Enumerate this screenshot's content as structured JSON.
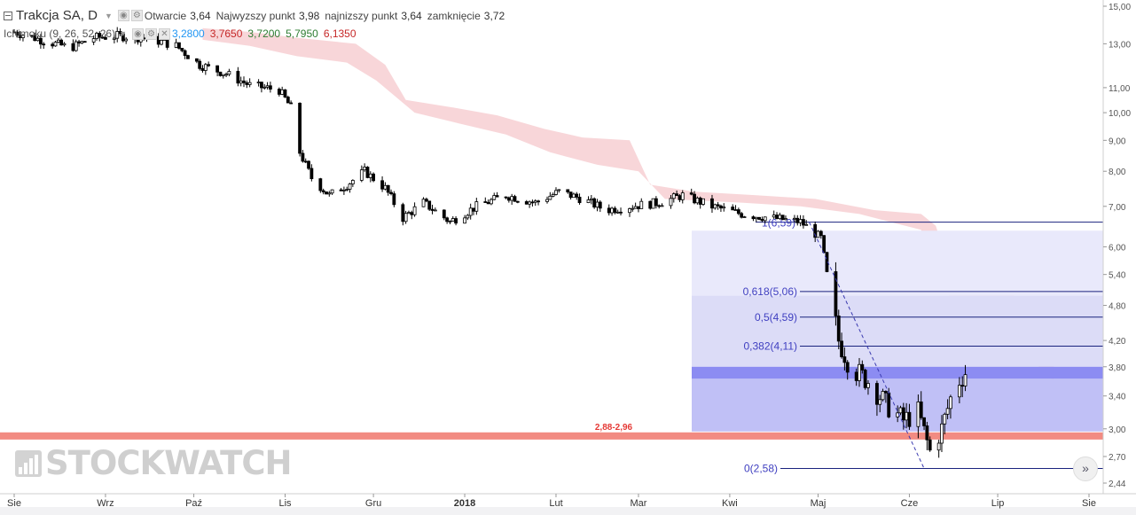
{
  "legend": {
    "title": "Trakcja SA, D",
    "open_label": "Otwarcie",
    "open_value": "3,64",
    "high_label": "Najwyzszy punkt",
    "high_value": "3,98",
    "low_label": "najnizszy punkt",
    "low_value": "3,64",
    "close_label": "zamknięcie",
    "close_value": "3,72",
    "indicator_name": "Ichimoku (9, 26, 52, 26)",
    "indicator_values": [
      "3,2800",
      "3,7650",
      "3,7200",
      "5,7950",
      "6,1350"
    ]
  },
  "logo": {
    "text": "STOCKWATCH"
  },
  "chart_data": {
    "type": "candlestick",
    "scale": "log",
    "ylim": [
      2.44,
      15.0
    ],
    "y_ticks": [
      "15,00",
      "13,00",
      "11,00",
      "10,00",
      "9,00",
      "8,00",
      "7,00",
      "6,00",
      "5,40",
      "4,80",
      "4,20",
      "3,80",
      "3,40",
      "3,00",
      "2,70",
      "2,44"
    ],
    "x_ticks": [
      "Sie",
      "Wrz",
      "Paź",
      "Lis",
      "Gru",
      "2018",
      "Lut",
      "Mar",
      "Kwi",
      "Maj",
      "Cze",
      "Lip",
      "Sie"
    ],
    "fibonacci": [
      {
        "label": "1(6,59)",
        "value": 6.59
      },
      {
        "label": "0,618(5,06)",
        "value": 5.06
      },
      {
        "label": "0,5(4,59)",
        "value": 4.59
      },
      {
        "label": "0,382(4,11)",
        "value": 4.11
      },
      {
        "label": "0(2,58)",
        "value": 2.58
      }
    ],
    "support_zone": {
      "label": "2,88-2,96",
      "low": 2.88,
      "high": 2.96
    },
    "price_path": [
      [
        "2017-08-01",
        13.6
      ],
      [
        "2017-08-10",
        13.2
      ],
      [
        "2017-08-20",
        12.8
      ],
      [
        "2017-08-28",
        13.3
      ],
      [
        "2017-09-05",
        13.4
      ],
      [
        "2017-09-15",
        13.3
      ],
      [
        "2017-09-25",
        12.9
      ],
      [
        "2017-10-03",
        12.0
      ],
      [
        "2017-10-12",
        11.6
      ],
      [
        "2017-10-20",
        11.1
      ],
      [
        "2017-10-30",
        10.9
      ],
      [
        "2017-11-03",
        10.2
      ],
      [
        "2017-11-06",
        8.6
      ],
      [
        "2017-11-10",
        7.8
      ],
      [
        "2017-11-16",
        7.3
      ],
      [
        "2017-11-22",
        7.6
      ],
      [
        "2017-11-28",
        8.0
      ],
      [
        "2017-12-05",
        7.5
      ],
      [
        "2017-12-11",
        6.7
      ],
      [
        "2017-12-18",
        7.1
      ],
      [
        "2017-12-27",
        6.6
      ],
      [
        "2018-01-05",
        7.0
      ],
      [
        "2018-01-15",
        7.3
      ],
      [
        "2018-01-25",
        7.1
      ],
      [
        "2018-02-02",
        7.4
      ],
      [
        "2018-02-10",
        7.2
      ],
      [
        "2018-02-18",
        6.9
      ],
      [
        "2018-02-26",
        7.0
      ],
      [
        "2018-03-08",
        7.1
      ],
      [
        "2018-03-16",
        7.3
      ],
      [
        "2018-03-26",
        7.0
      ],
      [
        "2018-04-05",
        6.8
      ],
      [
        "2018-04-15",
        6.7
      ],
      [
        "2018-04-25",
        6.6
      ],
      [
        "2018-05-02",
        6.2
      ],
      [
        "2018-05-04",
        5.4
      ],
      [
        "2018-05-08",
        4.2
      ],
      [
        "2018-05-12",
        3.8
      ],
      [
        "2018-05-18",
        3.6
      ],
      [
        "2018-05-24",
        3.3
      ],
      [
        "2018-05-30",
        3.1
      ],
      [
        "2018-06-04",
        3.2
      ],
      [
        "2018-06-08",
        2.75
      ],
      [
        "2018-06-12",
        3.0
      ],
      [
        "2018-06-16",
        3.5
      ],
      [
        "2018-06-20",
        3.72
      ]
    ]
  },
  "colors": {
    "cloud": "#f6c8cc",
    "fib_line": "#1a237e",
    "fib_label": "#3f3fc0",
    "support_zone": "#f28b82",
    "support_label": "#e53935",
    "zone_light": "#e9e9fb",
    "zone_mid": "#dcdcf7",
    "zone_dark": "#8c8cf2",
    "zone_lower": "#c0c0f6"
  },
  "icons": {
    "collapse": "collapse-icon",
    "eye": "eye-icon",
    "settings": "settings-icon",
    "close": "close-icon",
    "goto": "chevron-double-right-icon"
  }
}
